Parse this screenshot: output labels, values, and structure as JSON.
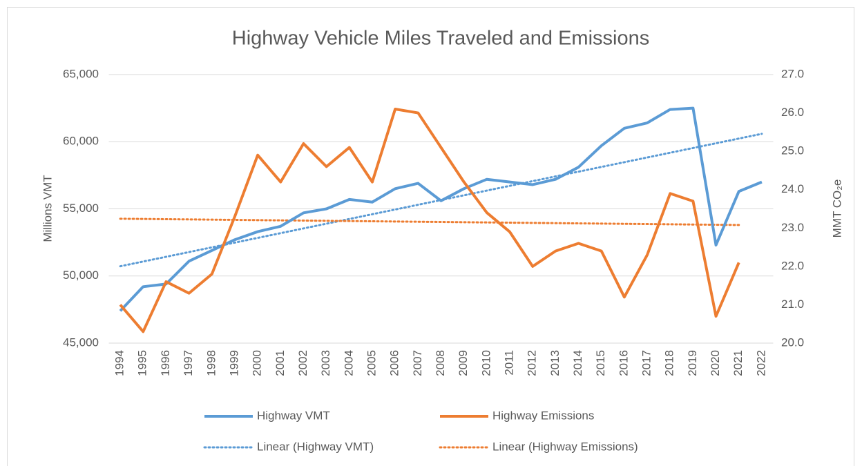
{
  "chart_data": {
    "type": "line",
    "title": "Highway Vehicle Miles Traveled and Emissions",
    "ylabel": "Millions VMT",
    "y2label": "MMT CO₂e",
    "categories": [
      "1994",
      "1995",
      "1996",
      "1997",
      "1998",
      "1999",
      "2000",
      "2001",
      "2002",
      "2003",
      "2004",
      "2005",
      "2006",
      "2007",
      "2008",
      "2009",
      "2010",
      "2011",
      "2012",
      "2013",
      "2014",
      "2015",
      "2016",
      "2017",
      "2018",
      "2019",
      "2020",
      "2021",
      "2022"
    ],
    "series": [
      {
        "name": "Highway VMT",
        "color": "#5b9bd5",
        "axis": "y",
        "values": [
          47400,
          49200,
          49400,
          51100,
          51900,
          52700,
          53300,
          53700,
          54700,
          55000,
          55700,
          55500,
          56500,
          56900,
          55600,
          56500,
          57200,
          57000,
          56800,
          57200,
          58100,
          59700,
          61000,
          61400,
          62400,
          62500,
          52300,
          56300,
          57000
        ]
      },
      {
        "name": "Highway Emissions",
        "color": "#ed7d31",
        "axis": "y2",
        "values": [
          21.0,
          20.3,
          21.6,
          21.3,
          21.8,
          23.3,
          24.9,
          24.2,
          25.2,
          24.6,
          25.1,
          24.2,
          26.1,
          26.0,
          25.1,
          24.2,
          23.4,
          22.9,
          22.0,
          22.4,
          22.6,
          22.4,
          21.2,
          22.3,
          23.9,
          23.7,
          20.7,
          22.1,
          null
        ]
      }
    ],
    "trendlines": [
      {
        "name": "Linear (Highway VMT)",
        "of": 0,
        "color": "#5b9bd5"
      },
      {
        "name": "Linear (Highway Emissions)",
        "of": 1,
        "color": "#ed7d31"
      }
    ],
    "ylim": [
      45000,
      65000
    ],
    "yticks": [
      {
        "value": 45000,
        "label": "45,000"
      },
      {
        "value": 50000,
        "label": "50,000"
      },
      {
        "value": 55000,
        "label": "55,000"
      },
      {
        "value": 60000,
        "label": "60,000"
      },
      {
        "value": 65000,
        "label": "65,000"
      }
    ],
    "y2lim": [
      20,
      27
    ],
    "y2ticks": [
      {
        "value": 20,
        "label": "20.0"
      },
      {
        "value": 21,
        "label": "21.0"
      },
      {
        "value": 22,
        "label": "22.0"
      },
      {
        "value": 23,
        "label": "23.0"
      },
      {
        "value": 24,
        "label": "24.0"
      },
      {
        "value": 25,
        "label": "25.0"
      },
      {
        "value": 26,
        "label": "26.0"
      },
      {
        "value": 27,
        "label": "27.0"
      }
    ],
    "grid": true,
    "legend": "bottom"
  }
}
